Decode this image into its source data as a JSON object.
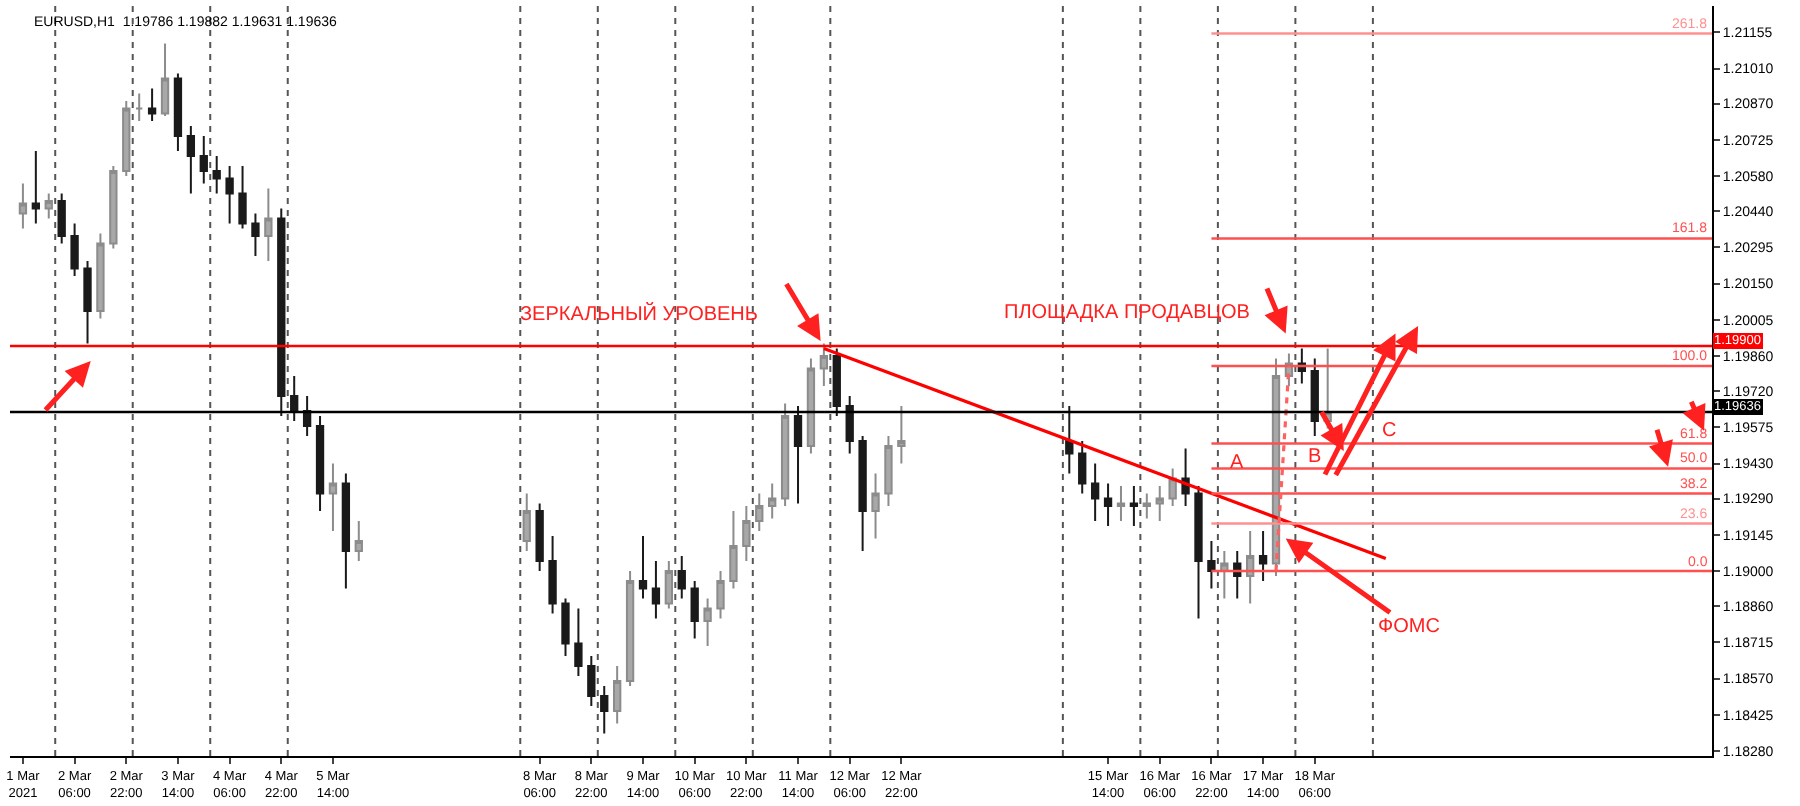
{
  "chart_data": {
    "type": "candlestick",
    "title": "EURUSD,H1  1.19786 1.19882 1.19631 1.19636",
    "x": [
      "2021-03-01T14:00",
      "2021-03-01T18:00",
      "2021-03-01T22:00",
      "2021-03-02T02:00",
      "2021-03-02T06:00",
      "2021-03-02T10:00",
      "2021-03-02T14:00",
      "2021-03-02T18:00",
      "2021-03-02T22:00",
      "2021-03-03T02:00",
      "2021-03-03T06:00",
      "2021-03-03T10:00",
      "2021-03-03T14:00",
      "2021-03-03T18:00",
      "2021-03-03T22:00",
      "2021-03-04T02:00",
      "2021-03-04T06:00",
      "2021-03-04T10:00",
      "2021-03-04T14:00",
      "2021-03-04T18:00",
      "2021-03-04T22:00",
      "2021-03-05T02:00",
      "2021-03-05T06:00",
      "2021-03-05T10:00",
      "2021-03-05T14:00",
      "2021-03-05T18:00",
      "2021-03-05T22:00",
      "2021-03-08T02:00",
      "2021-03-08T06:00",
      "2021-03-08T10:00",
      "2021-03-08T14:00",
      "2021-03-08T18:00",
      "2021-03-08T22:00",
      "2021-03-09T02:00",
      "2021-03-09T06:00",
      "2021-03-09T10:00",
      "2021-03-09T14:00",
      "2021-03-09T18:00",
      "2021-03-09T22:00",
      "2021-03-10T02:00",
      "2021-03-10T06:00",
      "2021-03-10T10:00",
      "2021-03-10T14:00",
      "2021-03-10T18:00",
      "2021-03-10T22:00",
      "2021-03-11T02:00",
      "2021-03-11T06:00",
      "2021-03-11T10:00",
      "2021-03-11T14:00",
      "2021-03-11T18:00",
      "2021-03-11T22:00",
      "2021-03-12T02:00",
      "2021-03-12T06:00",
      "2021-03-12T10:00",
      "2021-03-12T14:00",
      "2021-03-12T18:00",
      "2021-03-12T22:00",
      "2021-03-15T02:00",
      "2021-03-15T06:00",
      "2021-03-15T10:00",
      "2021-03-15T14:00",
      "2021-03-15T18:00",
      "2021-03-15T22:00",
      "2021-03-16T02:00",
      "2021-03-16T06:00",
      "2021-03-16T10:00",
      "2021-03-16T14:00",
      "2021-03-16T18:00",
      "2021-03-16T22:00",
      "2021-03-17T02:00",
      "2021-03-17T06:00",
      "2021-03-17T10:00",
      "2021-03-17T14:00",
      "2021-03-17T18:00",
      "2021-03-17T22:00",
      "2021-03-18T02:00",
      "2021-03-18T06:00",
      "2021-03-18T10:00"
    ],
    "ohlc": [
      [
        1.2043,
        1.2055,
        1.2037,
        1.2047
      ],
      [
        1.2047,
        1.2068,
        1.2039,
        1.2045
      ],
      [
        1.2045,
        1.2051,
        1.2041,
        1.2048
      ],
      [
        1.2048,
        1.2051,
        1.2031,
        1.2034
      ],
      [
        1.2034,
        1.2039,
        1.2018,
        1.2021
      ],
      [
        1.2021,
        1.2024,
        1.1991,
        1.2004
      ],
      [
        1.2004,
        1.2035,
        1.2001,
        1.2031
      ],
      [
        1.2031,
        1.2062,
        1.2029,
        1.206
      ],
      [
        1.206,
        1.2088,
        1.2058,
        1.2085
      ],
      [
        1.2085,
        1.2091,
        1.208,
        1.2085
      ],
      [
        1.2085,
        1.2093,
        1.208,
        1.2083
      ],
      [
        1.2083,
        1.2111,
        1.2082,
        1.2097
      ],
      [
        1.2097,
        1.2099,
        1.2068,
        1.2074
      ],
      [
        1.2074,
        1.2078,
        1.2051,
        1.2066
      ],
      [
        1.2066,
        1.2074,
        1.2055,
        1.206
      ],
      [
        1.206,
        1.2066,
        1.2051,
        1.2057
      ],
      [
        1.2057,
        1.2062,
        1.2039,
        1.2051
      ],
      [
        1.2051,
        1.2062,
        1.2037,
        1.2039
      ],
      [
        1.2039,
        1.2043,
        1.2026,
        1.2034
      ],
      [
        1.2034,
        1.2053,
        1.2024,
        1.2041
      ],
      [
        1.2041,
        1.2045,
        1.1962,
        1.197
      ],
      [
        1.197,
        1.1978,
        1.196,
        1.1964
      ],
      [
        1.1964,
        1.197,
        1.1954,
        1.1958
      ],
      [
        1.1958,
        1.1962,
        1.1924,
        1.1931
      ],
      [
        1.1931,
        1.1943,
        1.1916,
        1.1935
      ],
      [
        1.1935,
        1.1939,
        1.1893,
        1.1908
      ],
      [
        1.1908,
        1.192,
        1.1904,
        1.1912
      ],
      [
        1.1912,
        1.1931,
        1.1908,
        1.1924
      ],
      [
        1.1924,
        1.1927,
        1.19,
        1.1904
      ],
      [
        1.1904,
        1.1914,
        1.1883,
        1.1887
      ],
      [
        1.1887,
        1.1889,
        1.1866,
        1.1871
      ],
      [
        1.1871,
        1.1885,
        1.1858,
        1.1862
      ],
      [
        1.1862,
        1.1866,
        1.1846,
        1.185
      ],
      [
        1.185,
        1.1854,
        1.1835,
        1.1844
      ],
      [
        1.1844,
        1.1862,
        1.1839,
        1.1856
      ],
      [
        1.1856,
        1.19,
        1.1854,
        1.1896
      ],
      [
        1.1896,
        1.1914,
        1.1889,
        1.1893
      ],
      [
        1.1893,
        1.1904,
        1.1881,
        1.1887
      ],
      [
        1.1887,
        1.1904,
        1.1885,
        1.19
      ],
      [
        1.19,
        1.1906,
        1.1889,
        1.1893
      ],
      [
        1.1893,
        1.1896,
        1.1873,
        1.188
      ],
      [
        1.188,
        1.1889,
        1.187,
        1.1885
      ],
      [
        1.1885,
        1.19,
        1.1881,
        1.1896
      ],
      [
        1.1896,
        1.1924,
        1.1893,
        1.191
      ],
      [
        1.191,
        1.1926,
        1.1904,
        1.192
      ],
      [
        1.192,
        1.1931,
        1.1916,
        1.1926
      ],
      [
        1.1926,
        1.1935,
        1.1921,
        1.1929
      ],
      [
        1.1929,
        1.1967,
        1.1926,
        1.1962
      ],
      [
        1.1962,
        1.1966,
        1.1927,
        1.195
      ],
      [
        1.195,
        1.1985,
        1.1947,
        1.1981
      ],
      [
        1.1981,
        1.1991,
        1.1974,
        1.1986
      ],
      [
        1.1986,
        1.1989,
        1.1962,
        1.1966
      ],
      [
        1.1966,
        1.197,
        1.1947,
        1.1952
      ],
      [
        1.1952,
        1.1954,
        1.1908,
        1.1924
      ],
      [
        1.1924,
        1.1939,
        1.1913,
        1.1931
      ],
      [
        1.1931,
        1.1954,
        1.1926,
        1.195
      ],
      [
        1.195,
        1.1966,
        1.1943,
        1.1952
      ],
      [
        1.1952,
        1.1966,
        1.1939,
        1.1947
      ],
      [
        1.1947,
        1.1952,
        1.1931,
        1.1935
      ],
      [
        1.1935,
        1.1943,
        1.192,
        1.1929
      ],
      [
        1.1929,
        1.1935,
        1.1918,
        1.1926
      ],
      [
        1.1926,
        1.1934,
        1.192,
        1.1927
      ],
      [
        1.1927,
        1.1934,
        1.1918,
        1.1926
      ],
      [
        1.1926,
        1.1931,
        1.1921,
        1.1927
      ],
      [
        1.1927,
        1.1934,
        1.192,
        1.1929
      ],
      [
        1.1929,
        1.1941,
        1.1926,
        1.1937
      ],
      [
        1.1937,
        1.1949,
        1.1926,
        1.1931
      ],
      [
        1.1931,
        1.1934,
        1.1881,
        1.1904
      ],
      [
        1.1904,
        1.1912,
        1.1893,
        1.19
      ],
      [
        1.19,
        1.1908,
        1.1889,
        1.1903
      ],
      [
        1.1903,
        1.1908,
        1.1889,
        1.1898
      ],
      [
        1.1898,
        1.1916,
        1.1887,
        1.1906
      ],
      [
        1.1906,
        1.1916,
        1.1896,
        1.1903
      ],
      [
        1.1903,
        1.1985,
        1.1898,
        1.1978
      ],
      [
        1.1978,
        1.1987,
        1.1974,
        1.1983
      ],
      [
        1.1983,
        1.1989,
        1.1975,
        1.198
      ],
      [
        1.198,
        1.1985,
        1.1954,
        1.196
      ],
      [
        1.196,
        1.1989,
        1.1957,
        1.19636
      ]
    ],
    "series": [
      {
        "type": "line",
        "color": "#ff0000",
        "x": [
          "2021-03-11T22:00",
          "2021-03-19T04:00"
        ],
        "values": [
          1.1989,
          1.1905
        ]
      },
      {
        "type": "line",
        "name": "261.8",
        "color": "#ff9090",
        "x": [
          "2021-03-16T22:00",
          "2021-03-23T09:00"
        ],
        "values": [
          1.2115,
          1.2115
        ]
      },
      {
        "type": "line",
        "name": "161.8",
        "color": "#ff5050",
        "x": [
          "2021-03-16T22:00",
          "2021-03-23T09:00"
        ],
        "values": [
          1.2033,
          1.2033
        ]
      },
      {
        "type": "line",
        "name": "100.0",
        "color": "#ff5050",
        "x": [
          "2021-03-16T22:00",
          "2021-03-23T09:00"
        ],
        "values": [
          1.1982,
          1.1982
        ]
      },
      {
        "type": "line",
        "name": "61.8",
        "color": "#ff5050",
        "x": [
          "2021-03-16T22:00",
          "2021-03-23T09:00"
        ],
        "values": [
          1.1951,
          1.1951
        ]
      },
      {
        "type": "line",
        "name": "50.0",
        "color": "#ff5050",
        "x": [
          "2021-03-16T22:00",
          "2021-03-23T09:00"
        ],
        "values": [
          1.1941,
          1.1941
        ]
      },
      {
        "type": "line",
        "name": "38.2",
        "color": "#ff5050",
        "x": [
          "2021-03-16T22:00",
          "2021-03-23T09:00"
        ],
        "values": [
          1.1931,
          1.1931
        ]
      },
      {
        "type": "line",
        "name": "23.6",
        "color": "#ff9090",
        "x": [
          "2021-03-16T22:00",
          "2021-03-23T09:00"
        ],
        "values": [
          1.1919,
          1.1919
        ]
      },
      {
        "type": "line",
        "name": "0.0",
        "color": "#ff5050",
        "x": [
          "2021-03-16T22:00",
          "2021-03-23T09:00"
        ],
        "values": [
          1.19,
          1.19
        ]
      },
      {
        "type": "line",
        "color": "#ff6060",
        "line_style": "dotted",
        "x": [
          "2021-03-17T18:00",
          "2021-03-17T22:00"
        ],
        "values": [
          1.19,
          1.1982
        ]
      }
    ],
    "ref_lines": [
      {
        "axis": "y",
        "value": 1.199,
        "label": "1.19900",
        "color": "#ff0000",
        "line_style": "solid"
      },
      {
        "axis": "y",
        "value": 1.19636,
        "label": "1.19636",
        "color": "#000000",
        "line_style": "solid"
      },
      {
        "axis": "x",
        "value": "2021-03-02T00:00",
        "color": "#555555",
        "line_style": "dotted"
      },
      {
        "axis": "x",
        "value": "2021-03-03T00:00",
        "color": "#555555",
        "line_style": "dotted"
      },
      {
        "axis": "x",
        "value": "2021-03-04T00:00",
        "color": "#555555",
        "line_style": "dotted"
      },
      {
        "axis": "x",
        "value": "2021-03-05T00:00",
        "color": "#555555",
        "line_style": "dotted"
      },
      {
        "axis": "x",
        "value": "2021-03-08T00:00",
        "color": "#555555",
        "line_style": "dotted"
      },
      {
        "axis": "x",
        "value": "2021-03-09T00:00",
        "color": "#555555",
        "line_style": "dotted"
      },
      {
        "axis": "x",
        "value": "2021-03-10T00:00",
        "color": "#555555",
        "line_style": "dotted"
      },
      {
        "axis": "x",
        "value": "2021-03-11T00:00",
        "color": "#555555",
        "line_style": "dotted"
      },
      {
        "axis": "x",
        "value": "2021-03-12T00:00",
        "color": "#555555",
        "line_style": "dotted"
      },
      {
        "axis": "x",
        "value": "2021-03-15T00:00",
        "color": "#555555",
        "line_style": "dotted"
      },
      {
        "axis": "x",
        "value": "2021-03-16T00:00",
        "color": "#555555",
        "line_style": "dotted"
      },
      {
        "axis": "x",
        "value": "2021-03-17T00:00",
        "color": "#555555",
        "line_style": "dotted"
      },
      {
        "axis": "x",
        "value": "2021-03-18T00:00",
        "color": "#555555",
        "line_style": "dotted"
      },
      {
        "axis": "x",
        "value": "2021-03-19T00:00",
        "color": "#555555",
        "line_style": "dotted"
      }
    ],
    "annotations": [
      "ЗЕРКАЛЬНЫЙ УРОВЕНЬ",
      "ПЛОЩАДКА ПРОДАВЦОВ",
      "A",
      "B",
      "C",
      {
        "text": "ФОМС",
        "x": "2021-03-17T21:00",
        "y": 1.1913
      }
    ],
    "xlim": [
      "2021-03-01T10:00",
      "2021-03-23T09:00"
    ],
    "xticks": [
      {
        "value": "2021-03-01T14:00",
        "label": "1 Mar 2021"
      },
      {
        "value": "2021-03-02T06:00",
        "label": "2 Mar 06:00"
      },
      {
        "value": "2021-03-02T22:00",
        "label": "2 Mar 22:00"
      },
      {
        "value": "2021-03-03T14:00",
        "label": "3 Mar 14:00"
      },
      {
        "value": "2021-03-04T06:00",
        "label": "4 Mar 06:00"
      },
      {
        "value": "2021-03-04T22:00",
        "label": "4 Mar 22:00"
      },
      {
        "value": "2021-03-05T14:00",
        "label": "5 Mar 14:00"
      },
      {
        "value": "2021-03-08T06:00",
        "label": "8 Mar 06:00"
      },
      {
        "value": "2021-03-08T22:00",
        "label": "8 Mar 22:00"
      },
      {
        "value": "2021-03-09T14:00",
        "label": "9 Mar 14:00"
      },
      {
        "value": "2021-03-10T06:00",
        "label": "10 Mar 06:00"
      },
      {
        "value": "2021-03-10T22:00",
        "label": "10 Mar 22:00"
      },
      {
        "value": "2021-03-11T14:00",
        "label": "11 Mar 14:00"
      },
      {
        "value": "2021-03-12T06:00",
        "label": "12 Mar 06:00"
      },
      {
        "value": "2021-03-12T22:00",
        "label": "12 Mar 22:00"
      },
      {
        "value": "2021-03-15T14:00",
        "label": "15 Mar 14:00"
      },
      {
        "value": "2021-03-16T06:00",
        "label": "16 Mar 06:00"
      },
      {
        "value": "2021-03-16T22:00",
        "label": "16 Mar 22:00"
      },
      {
        "value": "2021-03-17T14:00",
        "label": "17 Mar 14:00"
      },
      {
        "value": "2021-03-18T06:00",
        "label": "18 Mar 06:00"
      }
    ],
    "ylim": [
      1.1826,
      1.2126
    ],
    "yticks": [
      {
        "value": 1.21155,
        "label": "1.21155"
      },
      {
        "value": 1.2101,
        "label": "1.21010"
      },
      {
        "value": 1.2087,
        "label": "1.20870"
      },
      {
        "value": 1.20725,
        "label": "1.20725"
      },
      {
        "value": 1.2058,
        "label": "1.20580"
      },
      {
        "value": 1.2044,
        "label": "1.20440"
      },
      {
        "value": 1.20295,
        "label": "1.20295"
      },
      {
        "value": 1.2015,
        "label": "1.20150"
      },
      {
        "value": 1.20005,
        "label": "1.20005"
      },
      {
        "value": 1.1986,
        "label": "1.19860"
      },
      {
        "value": 1.1972,
        "label": "1.19720"
      },
      {
        "value": 1.19575,
        "label": "1.19575"
      },
      {
        "value": 1.1943,
        "label": "1.19430"
      },
      {
        "value": 1.1929,
        "label": "1.19290"
      },
      {
        "value": 1.19145,
        "label": "1.19145"
      },
      {
        "value": 1.19,
        "label": "1.19000"
      },
      {
        "value": 1.1886,
        "label": "1.18860"
      },
      {
        "value": 1.18715,
        "label": "1.18715"
      },
      {
        "value": 1.1857,
        "label": "1.18570"
      },
      {
        "value": 1.18425,
        "label": "1.18425"
      },
      {
        "value": 1.1828,
        "label": "1.18280"
      }
    ],
    "legend": false
  }
}
